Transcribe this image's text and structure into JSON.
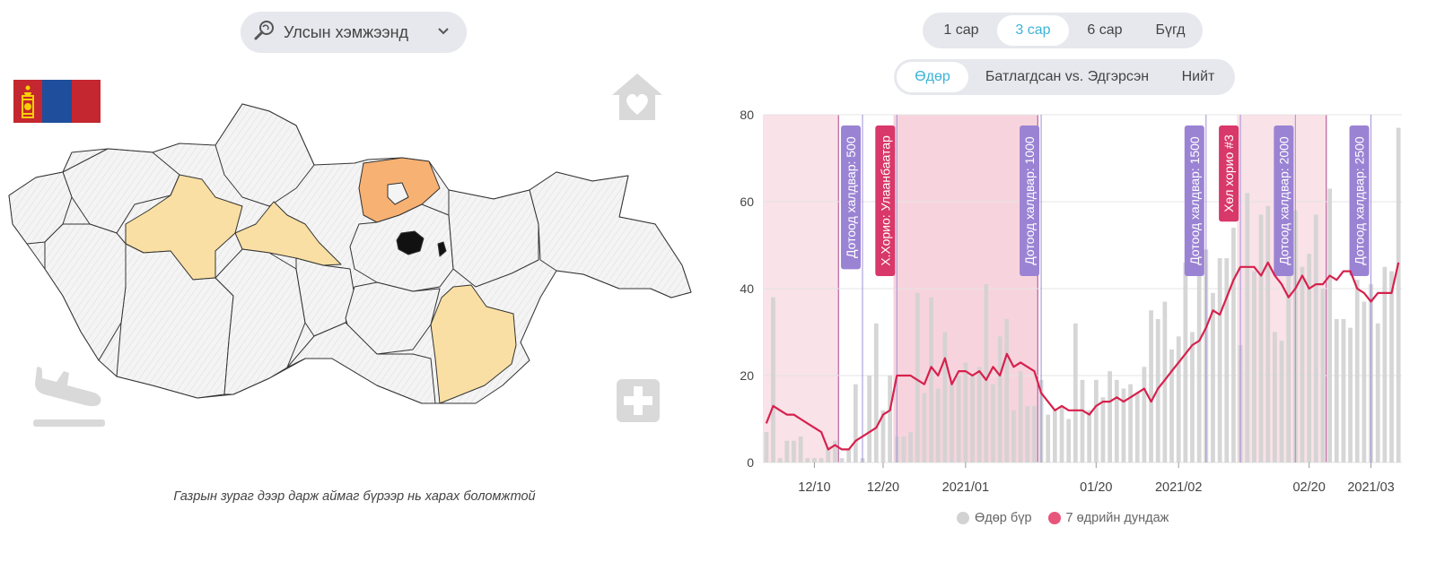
{
  "left": {
    "scope_select": {
      "label": "Улсын хэмжээнд"
    },
    "caption": "Газрын зураг дээр дарж аймаг бүрээр нь харах боломжтой",
    "flag_colors": [
      "#c4272f",
      "#1f4e9c",
      "#c4272f"
    ],
    "icons": [
      "search-map-icon",
      "chevron-down-icon",
      "home-heart-icon",
      "plane-landing-icon",
      "medical-cross-icon"
    ],
    "map_colors": {
      "default": "#f2f2f2",
      "light": "#f9dfa3",
      "orange": "#f7b173",
      "black": "#111111"
    }
  },
  "range_tabs": [
    {
      "label": "1 сар",
      "active": false
    },
    {
      "label": "3 сар",
      "active": true
    },
    {
      "label": "6 сар",
      "active": false
    },
    {
      "label": "Бүгд",
      "active": false
    }
  ],
  "mode_tabs": [
    {
      "label": "Өдөр",
      "active": true
    },
    {
      "label": "Батлагдсан vs. Эдгэрсэн",
      "active": false
    },
    {
      "label": "Нийт",
      "active": false
    }
  ],
  "legend": {
    "daily": "Өдөр бүр",
    "avg7": "7 өдрийн дундаж"
  },
  "colors": {
    "accent": "#3db3d8",
    "bars": "#d2d2d2",
    "avg_line": "#d6214d",
    "lockdown_band": "#f5c9d4",
    "lockdown_band_alt": "#f7dbe2",
    "purple_label": "#9b83d4",
    "red_label": "#d8386a"
  },
  "chart_data": {
    "type": "bar",
    "ylim": [
      0,
      80
    ],
    "y_ticks": [
      0,
      20,
      40,
      60,
      80
    ],
    "x_tick_labels": [
      "12/10",
      "12/20",
      "2021/01",
      "01/20",
      "2021/02",
      "02/20",
      "2021/03"
    ],
    "grid": true,
    "start_date": "2020-12-03",
    "x_tick_dates": [
      "2020-12-10",
      "2020-12-20",
      "2021-01-01",
      "2021-01-20",
      "2021-02-01",
      "2021-02-20",
      "2021-03-01"
    ],
    "series": [
      {
        "name": "Өдөр бүр",
        "type": "bar",
        "values": [
          7,
          38,
          1,
          5,
          5,
          6,
          1,
          1,
          1,
          3,
          5,
          1,
          3,
          18,
          1,
          20,
          32,
          12,
          20,
          6,
          6,
          7,
          39,
          16,
          38,
          17,
          30,
          18,
          20,
          23,
          20,
          22,
          41,
          18,
          29,
          33,
          12,
          21,
          13,
          13,
          19,
          11,
          12,
          13,
          10,
          32,
          19,
          12,
          19,
          15,
          21,
          19,
          17,
          18,
          16,
          22,
          35,
          33,
          37,
          26,
          29,
          46,
          30,
          50,
          49,
          39,
          47,
          47,
          54,
          27,
          62,
          44,
          57,
          59,
          30,
          28,
          57,
          58,
          45,
          48,
          57,
          40,
          63,
          33,
          33,
          31,
          42,
          37,
          41,
          32,
          45,
          44,
          77
        ]
      },
      {
        "name": "7 өдрийн дундаж",
        "type": "line",
        "values": [
          9,
          13,
          12,
          11,
          11,
          10,
          9,
          8,
          7,
          3,
          4,
          3,
          3,
          5,
          6,
          7,
          8,
          11,
          12,
          20,
          20,
          20,
          19,
          18,
          22,
          20,
          24,
          18,
          21,
          21,
          20,
          21,
          19,
          22,
          20,
          25,
          22,
          23,
          22,
          21,
          16,
          14,
          12,
          13,
          12,
          12,
          12,
          11,
          13,
          14,
          14,
          15,
          14,
          15,
          16,
          17,
          14,
          17,
          19,
          21,
          23,
          25,
          27,
          28,
          31,
          35,
          34,
          38,
          42,
          45,
          45,
          45,
          43,
          46,
          43,
          41,
          38,
          40,
          43,
          40,
          41,
          41,
          43,
          42,
          44,
          44,
          40,
          39,
          37,
          39,
          39,
          39,
          46
        ]
      }
    ],
    "bands": [
      {
        "from": "2020-12-03",
        "to": "2020-12-14",
        "style": "lockdown_band_alt"
      },
      {
        "from": "2020-12-22",
        "to": "2021-01-12",
        "style": "lockdown_band"
      },
      {
        "from": "2021-02-10",
        "to": "2021-02-23",
        "style": "lockdown_band_alt"
      }
    ],
    "annotations": [
      {
        "date": "2020-12-17",
        "label": "Дотоод халдвар: 500",
        "color": "purple_label"
      },
      {
        "date": "2020-12-22",
        "label": "Х.Хорио: Улаанбаатар",
        "color": "red_label"
      },
      {
        "date": "2021-01-12",
        "label": "Дотоод халдвар: 1000",
        "color": "purple_label"
      },
      {
        "date": "2021-02-05",
        "label": "Дотоод халдвар: 1500",
        "color": "purple_label"
      },
      {
        "date": "2021-02-10",
        "label": "Хөл хорио #3",
        "color": "red_label"
      },
      {
        "date": "2021-02-18",
        "label": "Дотоод халдвар: 2000",
        "color": "purple_label"
      },
      {
        "date": "2021-03-01",
        "label": "Дотоод халдвар: 2500",
        "color": "purple_label"
      }
    ]
  }
}
